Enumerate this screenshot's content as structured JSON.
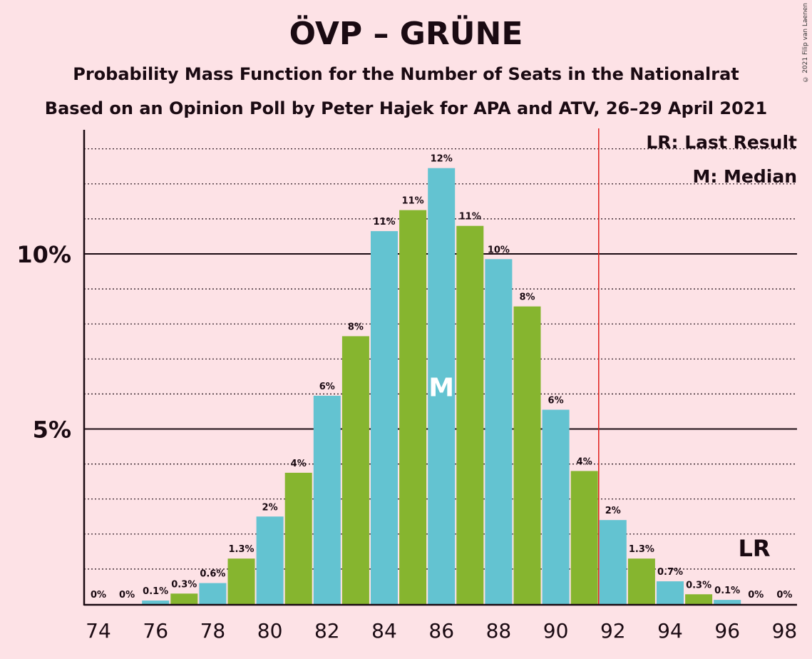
{
  "header": {
    "title": "ÖVP – GRÜNE",
    "subtitle1": "Probability Mass Function for the Number of Seats in the Nationalrat",
    "subtitle2": "Based on an Opinion Poll by Peter Hajek for APA and ATV, 26–29 April 2021",
    "copyright": "© 2021 Filip van Laenen"
  },
  "legend": {
    "lr": "LR: Last Result",
    "median": "M: Median"
  },
  "markers": {
    "median_label": "M",
    "last_result_label": "LR"
  },
  "colors": {
    "background": "#fde2e6",
    "bar_blue": "#63c3d1",
    "bar_green": "#86b52f",
    "last_result_line": "#e0201c",
    "median_text": "#ffffff"
  },
  "chart_data": {
    "type": "bar",
    "x": [
      74,
      75,
      76,
      77,
      78,
      79,
      80,
      81,
      82,
      83,
      84,
      85,
      86,
      87,
      88,
      89,
      90,
      91,
      92,
      93,
      94,
      95,
      96,
      97,
      98
    ],
    "values": [
      0.0,
      0.0,
      0.1,
      0.3,
      0.6,
      1.3,
      2.5,
      3.75,
      5.95,
      7.65,
      10.65,
      11.25,
      12.45,
      10.8,
      9.85,
      8.5,
      5.55,
      3.8,
      2.4,
      1.3,
      0.65,
      0.28,
      0.12,
      0.0,
      0.0
    ],
    "labels": [
      "0%",
      "0%",
      "0.1%",
      "0.3%",
      "0.6%",
      "1.3%",
      "2%",
      "4%",
      "6%",
      "8%",
      "11%",
      "11%",
      "12%",
      "11%",
      "10%",
      "8%",
      "6%",
      "4%",
      "2%",
      "1.3%",
      "0.7%",
      "0.3%",
      "0.1%",
      "0%",
      "0%"
    ],
    "x_ticks": [
      "74",
      "76",
      "78",
      "80",
      "82",
      "84",
      "86",
      "88",
      "90",
      "92",
      "94",
      "96",
      "98"
    ],
    "y_ticks": [
      {
        "value": 5,
        "label": "5%"
      },
      {
        "value": 10,
        "label": "10%"
      }
    ],
    "ylim": [
      0,
      13.5
    ],
    "median": 86,
    "last_result": 92,
    "grid": "dotted every 1%, solid at 5% and 10%",
    "legend_position": "top-right"
  }
}
